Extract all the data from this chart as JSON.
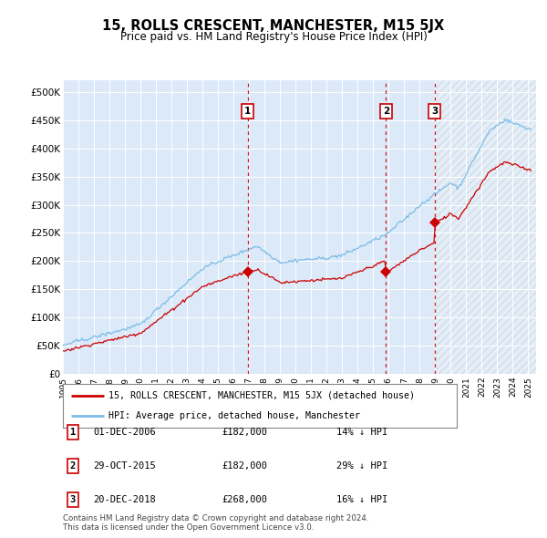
{
  "title": "15, ROLLS CRESCENT, MANCHESTER, M15 5JX",
  "subtitle": "Price paid vs. HM Land Registry's House Price Index (HPI)",
  "xlim_start": 1995.0,
  "xlim_end": 2025.5,
  "ylim": [
    0,
    520000
  ],
  "yticks": [
    0,
    50000,
    100000,
    150000,
    200000,
    250000,
    300000,
    350000,
    400000,
    450000,
    500000
  ],
  "ytick_labels": [
    "£0",
    "£50K",
    "£100K",
    "£150K",
    "£200K",
    "£250K",
    "£300K",
    "£350K",
    "£400K",
    "£450K",
    "£500K"
  ],
  "hpi_color": "#7bbde8",
  "price_color": "#cc0000",
  "bg_color": "#dce9f8",
  "vline_color": "#cc0000",
  "marker_box_color": "#cc0000",
  "purchase_dates": [
    2006.92,
    2015.83,
    2018.96
  ],
  "purchase_labels": [
    "1",
    "2",
    "3"
  ],
  "purchase_prices": [
    182000,
    182000,
    268000
  ],
  "legend_entries": [
    "15, ROLLS CRESCENT, MANCHESTER, M15 5JX (detached house)",
    "HPI: Average price, detached house, Manchester"
  ],
  "table_rows": [
    [
      "1",
      "01-DEC-2006",
      "£182,000",
      "14% ↓ HPI"
    ],
    [
      "2",
      "29-OCT-2015",
      "£182,000",
      "29% ↓ HPI"
    ],
    [
      "3",
      "20-DEC-2018",
      "£268,000",
      "16% ↓ HPI"
    ]
  ],
  "footnote": "Contains HM Land Registry data © Crown copyright and database right 2024.\nThis data is licensed under the Open Government Licence v3.0.",
  "xtick_years": [
    1995,
    1996,
    1997,
    1998,
    1999,
    2000,
    2001,
    2002,
    2003,
    2004,
    2005,
    2006,
    2007,
    2008,
    2009,
    2010,
    2011,
    2012,
    2013,
    2014,
    2015,
    2016,
    2017,
    2018,
    2019,
    2020,
    2021,
    2022,
    2023,
    2024,
    2025
  ]
}
